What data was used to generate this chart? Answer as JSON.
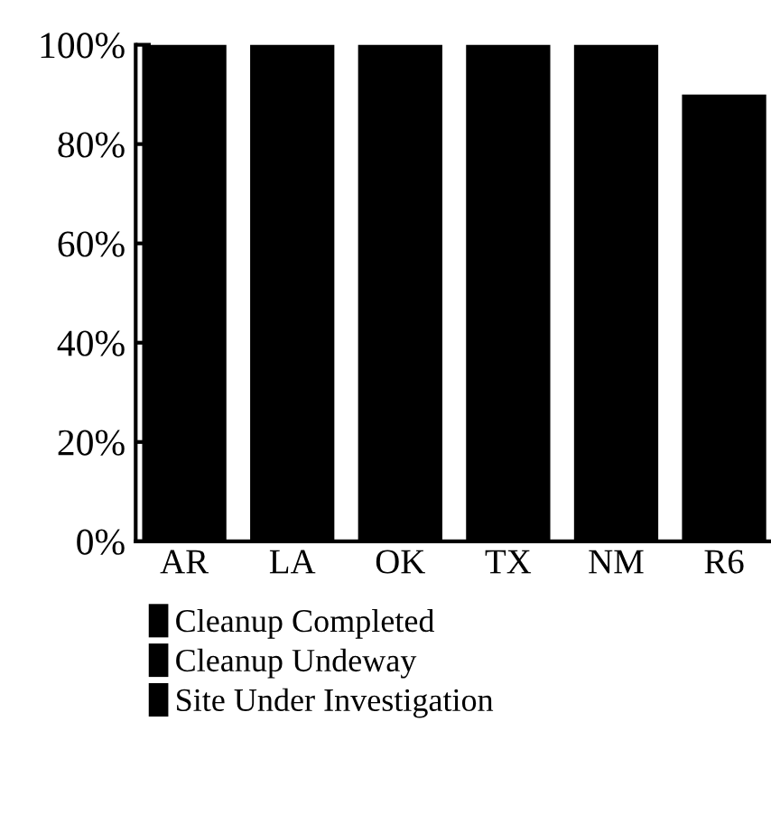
{
  "chart_data": {
    "type": "bar",
    "categories": [
      "AR",
      "LA",
      "OK",
      "TX",
      "NM",
      "R6"
    ],
    "series": [
      {
        "name": "Cleanup Completed",
        "color": "#000000",
        "values": [
          100,
          100,
          100,
          100,
          100,
          90
        ]
      },
      {
        "name": "Cleanup Undeway",
        "color": "#000000",
        "values": [
          null,
          null,
          null,
          null,
          null,
          null
        ]
      },
      {
        "name": "Site Under Investigation",
        "color": "#000000",
        "values": [
          null,
          null,
          null,
          null,
          null,
          null
        ]
      }
    ],
    "ylim": [
      0,
      100
    ],
    "yticks": [
      {
        "value": 0,
        "label": "0%"
      },
      {
        "value": 20,
        "label": "20%"
      },
      {
        "value": 40,
        "label": "40%"
      },
      {
        "value": 60,
        "label": "60%"
      },
      {
        "value": 80,
        "label": "80%"
      },
      {
        "value": 100,
        "label": "100%"
      }
    ],
    "grid": false,
    "legend": "bottom"
  }
}
